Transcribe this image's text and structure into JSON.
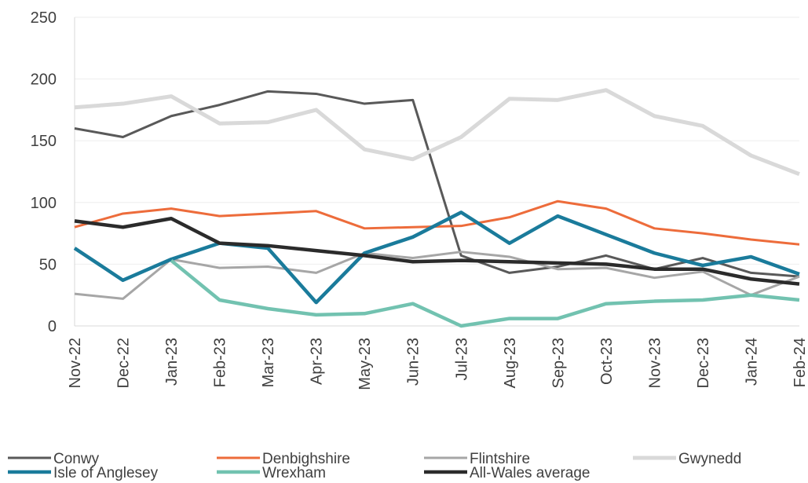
{
  "chart_data": {
    "type": "line",
    "categories": [
      "Nov-22",
      "Dec-22",
      "Jan-23",
      "Feb-23",
      "Mar-23",
      "Apr-23",
      "May-23",
      "Jun-23",
      "Jul-23",
      "Aug-23",
      "Sep-23",
      "Oct-23",
      "Nov-23",
      "Dec-23",
      "Jan-24",
      "Feb-24"
    ],
    "series": [
      {
        "name": "Conwy",
        "color": "#595959",
        "values": [
          160,
          153,
          170,
          179,
          190,
          188,
          180,
          183,
          57,
          43,
          48,
          57,
          46,
          55,
          43,
          40
        ]
      },
      {
        "name": "Denbighshire",
        "color": "#ed6c3b",
        "values": [
          80,
          91,
          95,
          89,
          91,
          93,
          79,
          80,
          81,
          88,
          101,
          95,
          79,
          75,
          70,
          66
        ]
      },
      {
        "name": "Flintshire",
        "color": "#a6a6a6",
        "values": [
          26,
          22,
          54,
          47,
          48,
          43,
          59,
          55,
          60,
          56,
          46,
          47,
          39,
          44,
          25,
          40
        ]
      },
      {
        "name": "Gwynedd",
        "color": "#d9d9d9",
        "values": [
          177,
          180,
          186,
          164,
          165,
          175,
          143,
          135,
          153,
          184,
          183,
          191,
          170,
          162,
          138,
          123
        ]
      },
      {
        "name": "Isle of Anglesey",
        "color": "#1a7b9b",
        "values": [
          63,
          37,
          54,
          67,
          63,
          19,
          59,
          72,
          92,
          67,
          89,
          74,
          59,
          49,
          56,
          42
        ]
      },
      {
        "name": "Wrexham",
        "color": "#72c2b0",
        "values": [
          null,
          null,
          53,
          21,
          14,
          9,
          10,
          18,
          0,
          6,
          6,
          18,
          20,
          21,
          25,
          21
        ]
      },
      {
        "name": "All-Wales average",
        "color": "#2b2b2b",
        "values": [
          85,
          80,
          87,
          67,
          65,
          61,
          57,
          52,
          53,
          52,
          51,
          50,
          46,
          46,
          38,
          34
        ]
      }
    ],
    "ylim": [
      0,
      250
    ],
    "yticks": [
      0,
      50,
      100,
      150,
      200,
      250
    ],
    "grid": true,
    "legend": "bottom"
  }
}
